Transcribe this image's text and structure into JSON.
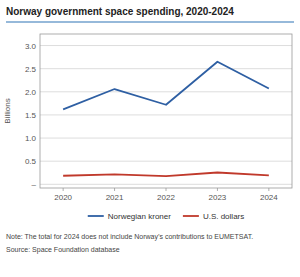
{
  "chart_data": {
    "type": "line",
    "title": "Norway government space spending, 2020-2024",
    "y_label": "Billions",
    "x": [
      2020,
      2021,
      2022,
      2023,
      2024
    ],
    "xlim": [
      2019.55,
      2024.45
    ],
    "xticks": [
      2020,
      2021,
      2022,
      2023,
      2024
    ],
    "ylim": [
      -0.08,
      3.25
    ],
    "yticks": [
      {
        "value": 0.0,
        "label": "–"
      },
      0.5,
      {
        "value": 1.0,
        "label": "1.0"
      },
      1.5,
      {
        "value": 2.0,
        "label": "2.0"
      },
      2.5,
      {
        "value": 3.0,
        "label": "3.0"
      }
    ],
    "grid": true,
    "legend": "bottom",
    "series": [
      {
        "name": "Norwegian kroner",
        "color": "#2e5fa3",
        "values": [
          1.62,
          2.06,
          1.72,
          2.65,
          2.07
        ]
      },
      {
        "name": "U.S. dollars",
        "color": "#c0392b",
        "values": [
          0.185,
          0.215,
          0.175,
          0.255,
          0.195
        ]
      }
    ],
    "annotations": [
      "Note: The total for 2024 does not include Norway’s contributions to EUMETSAT.",
      "Source:  Space Foundation database"
    ]
  }
}
